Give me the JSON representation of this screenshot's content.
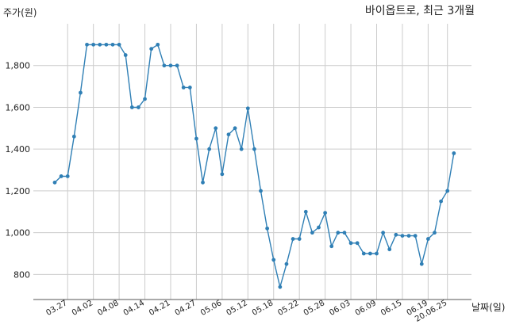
{
  "chart_data": {
    "type": "line",
    "title": "바이옵트로, 최근 3개월",
    "ylabel": "주가(원)",
    "xlabel": "날짜(일)",
    "ylim": [
      680,
      2000
    ],
    "yticks": [
      800,
      1000,
      1200,
      1400,
      1600,
      1800
    ],
    "ytick_labels": [
      "800",
      "1,000",
      "1,200",
      "1,400",
      "1,600",
      "1,800"
    ],
    "xticks": [
      {
        "i": 2,
        "label": "03.27"
      },
      {
        "i": 6,
        "label": "04.02"
      },
      {
        "i": 10,
        "label": "04.08"
      },
      {
        "i": 14,
        "label": "04.14"
      },
      {
        "i": 18,
        "label": "04.21"
      },
      {
        "i": 22,
        "label": "04.27"
      },
      {
        "i": 26,
        "label": "05.06"
      },
      {
        "i": 30,
        "label": "05.12"
      },
      {
        "i": 34,
        "label": "05.18"
      },
      {
        "i": 38,
        "label": "05.22"
      },
      {
        "i": 42,
        "label": "05.28"
      },
      {
        "i": 46,
        "label": "06.03"
      },
      {
        "i": 50,
        "label": "06.09"
      },
      {
        "i": 54,
        "label": "06.15"
      },
      {
        "i": 58,
        "label": "06.19"
      },
      {
        "i": 61,
        "label": "20.06.25"
      }
    ],
    "grid": true,
    "color": "#2f7fb5",
    "values": [
      1240,
      1270,
      1270,
      1460,
      1670,
      1900,
      1900,
      1900,
      1900,
      1900,
      1900,
      1850,
      1600,
      1600,
      1640,
      1880,
      1900,
      1800,
      1800,
      1800,
      1695,
      1695,
      1450,
      1240,
      1400,
      1500,
      1280,
      1470,
      1500,
      1400,
      1595,
      1400,
      1200,
      1020,
      870,
      740,
      850,
      970,
      970,
      1100,
      1000,
      1025,
      1095,
      935,
      1000,
      1000,
      950,
      950,
      900,
      900,
      900,
      1000,
      920,
      990,
      985,
      985,
      985,
      850,
      970,
      1000,
      1150,
      1200,
      1380
    ]
  }
}
